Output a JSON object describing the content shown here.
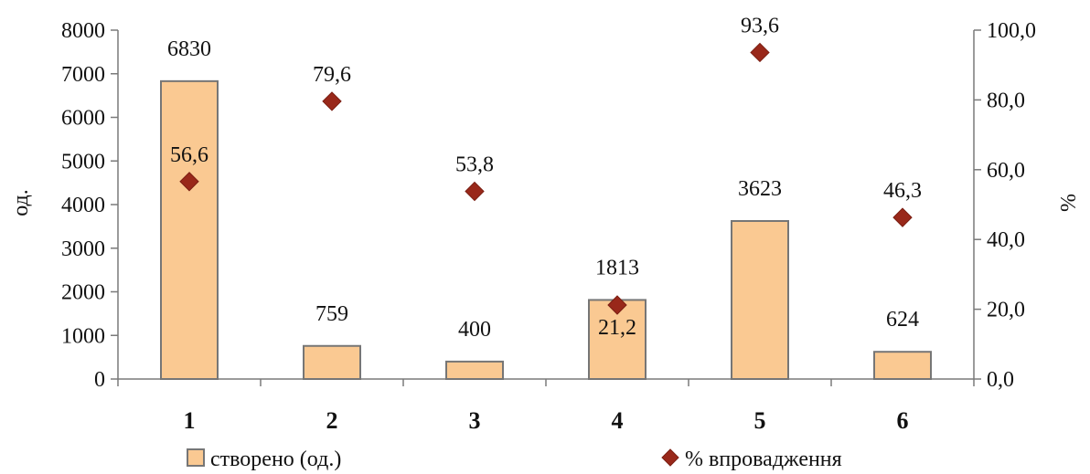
{
  "chart_data": {
    "type": "bar",
    "categories": [
      "1",
      "2",
      "3",
      "4",
      "5",
      "6"
    ],
    "series": [
      {
        "name": "створено (од.)",
        "type": "bar",
        "axis": "left",
        "values": [
          6830,
          759,
          400,
          1813,
          3623,
          624
        ],
        "labels": [
          "6830",
          "759",
          "400",
          "1813",
          "3623",
          "624"
        ],
        "color": "#fac992"
      },
      {
        "name": "% впровадження",
        "type": "scatter",
        "marker": "diamond",
        "axis": "right",
        "values": [
          56.6,
          79.6,
          53.8,
          21.2,
          93.6,
          46.3
        ],
        "labels": [
          "56,6",
          "79,6",
          "53,8",
          "21,2",
          "93,6",
          "46,3"
        ],
        "color": "#99281a"
      }
    ],
    "y_left": {
      "label": "од.",
      "ylim": [
        0,
        8000
      ],
      "ticks": [
        "0",
        "1000",
        "2000",
        "3000",
        "4000",
        "5000",
        "6000",
        "7000",
        "8000"
      ]
    },
    "y_right": {
      "label": "%",
      "ylim": [
        0,
        100
      ],
      "ticks": [
        "0,0",
        "20,0",
        "40,0",
        "60,0",
        "80,0",
        "100,0"
      ]
    },
    "grid": false,
    "legend_position": "bottom"
  }
}
